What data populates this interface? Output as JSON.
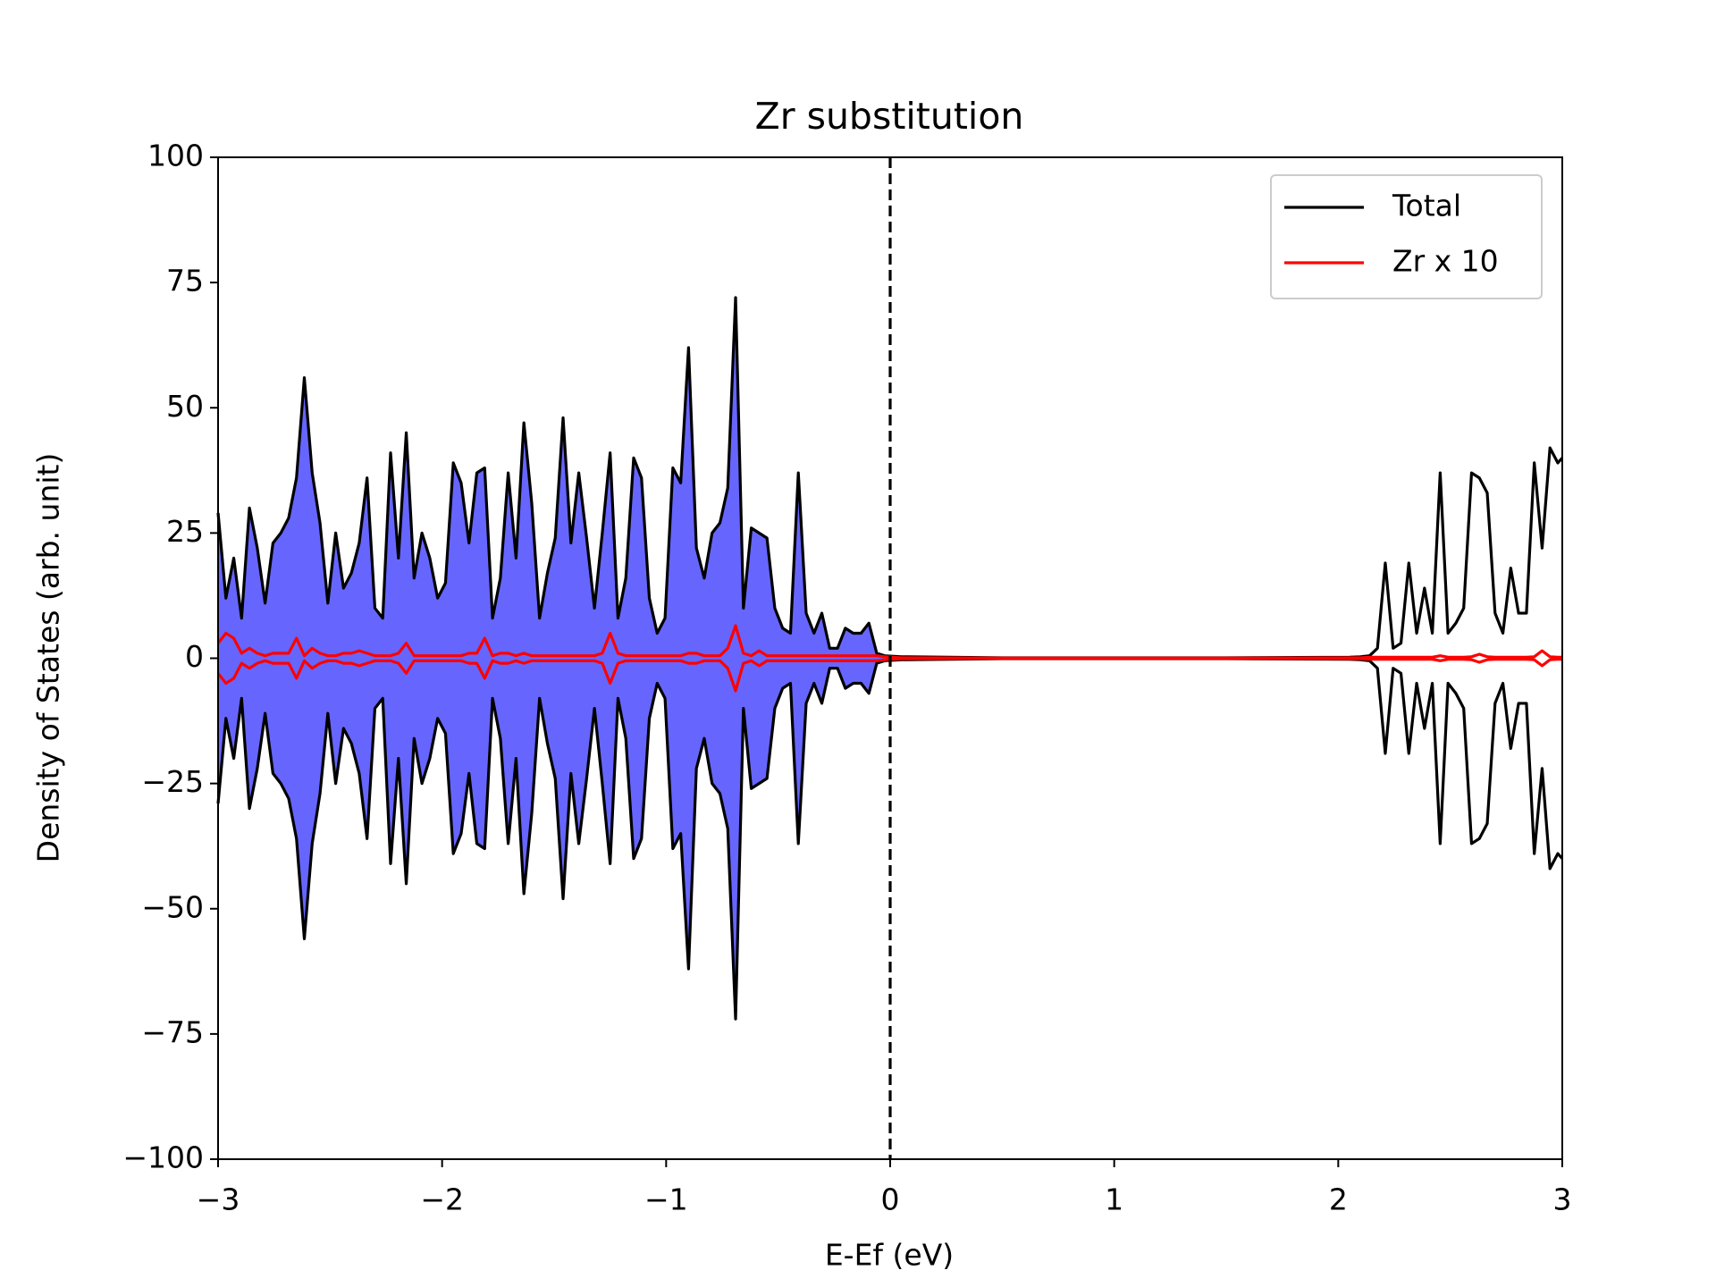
{
  "chart_data": {
    "type": "line",
    "title": "Zr substitution",
    "xlabel": "E-Ef (eV)",
    "ylabel": "Density of States (arb. unit)",
    "x": [
      -3,
      -2.965,
      -2.93,
      -2.895,
      -2.86,
      -2.825,
      -2.79,
      -2.755,
      -2.72,
      -2.685,
      -2.65,
      -2.615,
      -2.58,
      -2.545,
      -2.51,
      -2.475,
      -2.44,
      -2.405,
      -2.37,
      -2.335,
      -2.3,
      -2.265,
      -2.23,
      -2.195,
      -2.16,
      -2.125,
      -2.09,
      -2.055,
      -2.02,
      -1.985,
      -1.95,
      -1.915,
      -1.88,
      -1.845,
      -1.81,
      -1.775,
      -1.74,
      -1.705,
      -1.67,
      -1.635,
      -1.6,
      -1.565,
      -1.53,
      -1.495,
      -1.46,
      -1.425,
      -1.39,
      -1.355,
      -1.32,
      -1.285,
      -1.25,
      -1.215,
      -1.18,
      -1.145,
      -1.11,
      -1.075,
      -1.04,
      -1.005,
      -0.97,
      -0.935,
      -0.9,
      -0.865,
      -0.83,
      -0.795,
      -0.76,
      -0.725,
      -0.69,
      -0.655,
      -0.62,
      -0.585,
      -0.55,
      -0.515,
      -0.48,
      -0.445,
      -0.41,
      -0.375,
      -0.34,
      -0.305,
      -0.27,
      -0.235,
      -0.2,
      -0.165,
      -0.13,
      -0.095,
      -0.06,
      -0.025,
      0.05,
      0.5,
      1.5,
      2.05,
      2.1,
      2.14,
      2.175,
      2.21,
      2.245,
      2.28,
      2.315,
      2.35,
      2.385,
      2.42,
      2.455,
      2.49,
      2.525,
      2.56,
      2.595,
      2.63,
      2.665,
      2.7,
      2.735,
      2.77,
      2.805,
      2.84,
      2.875,
      2.91,
      2.945,
      2.98,
      3
    ],
    "series": [
      {
        "name": "Total",
        "color": "#000000",
        "values": [
          29,
          12,
          20,
          8,
          30,
          22,
          11,
          23,
          25,
          28,
          36,
          56,
          37,
          27,
          11,
          25,
          14,
          17,
          23,
          36,
          10,
          8,
          41,
          20,
          45,
          16,
          25,
          20,
          12,
          15,
          39,
          35,
          23,
          37,
          38,
          8,
          16,
          37,
          20,
          47,
          31,
          8,
          17,
          24,
          48,
          23,
          37,
          24,
          10,
          25,
          41,
          8,
          16,
          40,
          36,
          12,
          5,
          8,
          38,
          35,
          62,
          22,
          16,
          25,
          27,
          34,
          72,
          10,
          26,
          25,
          24,
          10,
          6,
          5,
          37,
          9,
          5,
          9,
          2,
          2,
          6,
          5,
          5,
          7,
          1,
          0.5,
          0.3,
          0.1,
          0.1,
          0.2,
          0.3,
          0.5,
          2,
          19,
          2,
          3,
          19,
          5,
          14,
          5,
          37,
          5,
          7,
          10,
          37,
          36,
          33,
          9,
          5,
          18,
          9,
          9,
          39,
          22,
          42,
          39,
          40
        ]
      },
      {
        "name": "Zr x 10",
        "color": "#ff0000",
        "values": [
          3,
          5,
          4,
          1,
          2,
          1,
          0.5,
          1,
          1,
          1,
          4,
          0.5,
          2,
          1,
          0.5,
          0.5,
          1,
          1,
          1.5,
          1,
          0.5,
          0.5,
          0.5,
          1,
          3,
          0.5,
          0.5,
          0.5,
          0.5,
          0.5,
          0.5,
          0.5,
          1,
          1,
          4,
          0.5,
          1,
          1,
          0.5,
          1,
          0.5,
          0.5,
          0.5,
          0.5,
          0.5,
          0.5,
          0.5,
          0.5,
          0.5,
          1,
          5,
          1,
          0.5,
          0.5,
          0.5,
          0.5,
          0.5,
          0.5,
          0.5,
          0.5,
          1,
          1,
          0.5,
          0.5,
          0.5,
          2,
          6.5,
          1,
          0.5,
          1.5,
          0.5,
          0.5,
          0.5,
          0.5,
          0.5,
          0.5,
          0.5,
          0.5,
          0.5,
          0.5,
          0.5,
          0.5,
          0.5,
          0.5,
          0.5,
          0.3,
          0.1,
          0.05,
          0.05,
          0.1,
          0.1,
          0.2,
          0.2,
          0.2,
          0.2,
          0.2,
          0.2,
          0.2,
          0.2,
          0.2,
          0.5,
          0.2,
          0.2,
          0.2,
          0.3,
          0.8,
          0.3,
          0.2,
          0.2,
          0.2,
          0.2,
          0.2,
          0.3,
          1.5,
          0.3,
          0.2,
          0.2
        ]
      }
    ],
    "fill_color": "#6666ff",
    "vline": 0,
    "xlim": [
      -3,
      3
    ],
    "xticks": [
      {
        "value": -3,
        "label": "−3"
      },
      {
        "value": -2,
        "label": "−2"
      },
      {
        "value": -1,
        "label": "−1"
      },
      0,
      1,
      2,
      3
    ],
    "ylim": [
      -100,
      100
    ],
    "yticks": [
      {
        "value": -100,
        "label": "−100"
      },
      {
        "value": -75,
        "label": "−75"
      },
      {
        "value": -50,
        "label": "−50"
      },
      {
        "value": -25,
        "label": "−25"
      },
      0,
      25,
      50,
      75,
      100
    ],
    "legend": "upper right",
    "grid": false
  }
}
